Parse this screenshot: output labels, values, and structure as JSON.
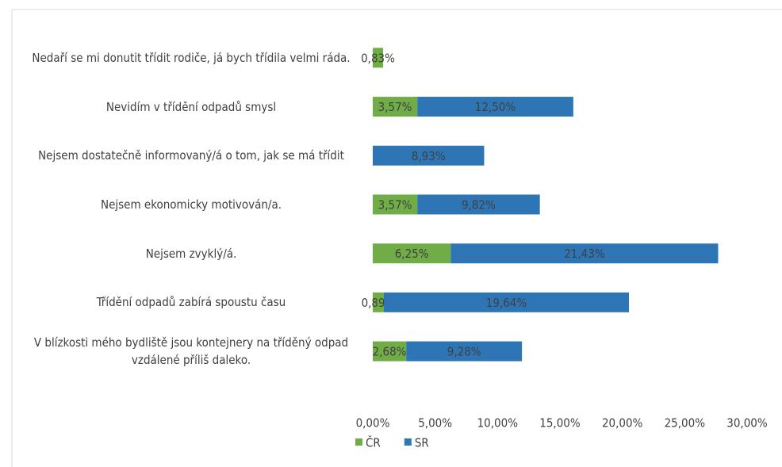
{
  "chart_data": {
    "type": "stacked-barh",
    "categories": [
      "Nedaří se mi donutit třídit rodiče, já bych třídila velmi ráda.",
      "Nevidím v třídění odpadů smysl",
      "Nejsem dostatečně informovaný/á o tom, jak se má třídit",
      "Nejsem ekonomicky motivován/a.",
      "Nejsem zvyklý/á.",
      "Třídění odpadů zabírá spoustu času",
      "V blízkosti mého bydliště jsou kontejnery na tříděný odpad  vzdálené příliš daleko."
    ],
    "series": [
      {
        "name": "ČR",
        "color": "#70ad47",
        "values": [
          0.83,
          3.57,
          null,
          3.57,
          6.25,
          0.89,
          2.68
        ],
        "value_labels": [
          "0,83%",
          "3,57%",
          null,
          "3,57%",
          "6,25%",
          "0,89%",
          "2,68%"
        ]
      },
      {
        "name": "SR",
        "color": "#2e75b6",
        "values": [
          null,
          12.5,
          8.93,
          9.82,
          21.43,
          19.64,
          9.28
        ],
        "value_labels": [
          null,
          "12,50%",
          "8,93%",
          "9,82%",
          "21,43%",
          "19,64%",
          "9,28%"
        ]
      }
    ],
    "xlim": [
      0,
      30
    ],
    "xticks": [
      {
        "value": 0,
        "label": "0,00%"
      },
      {
        "value": 5,
        "label": "5,00%"
      },
      {
        "value": 10,
        "label": "10,00%"
      },
      {
        "value": 15,
        "label": "15,00%"
      },
      {
        "value": 20,
        "label": "20,00%"
      },
      {
        "value": 25,
        "label": "25,00%"
      },
      {
        "value": 30,
        "label": "30,00%"
      }
    ],
    "legend": "bottom"
  }
}
